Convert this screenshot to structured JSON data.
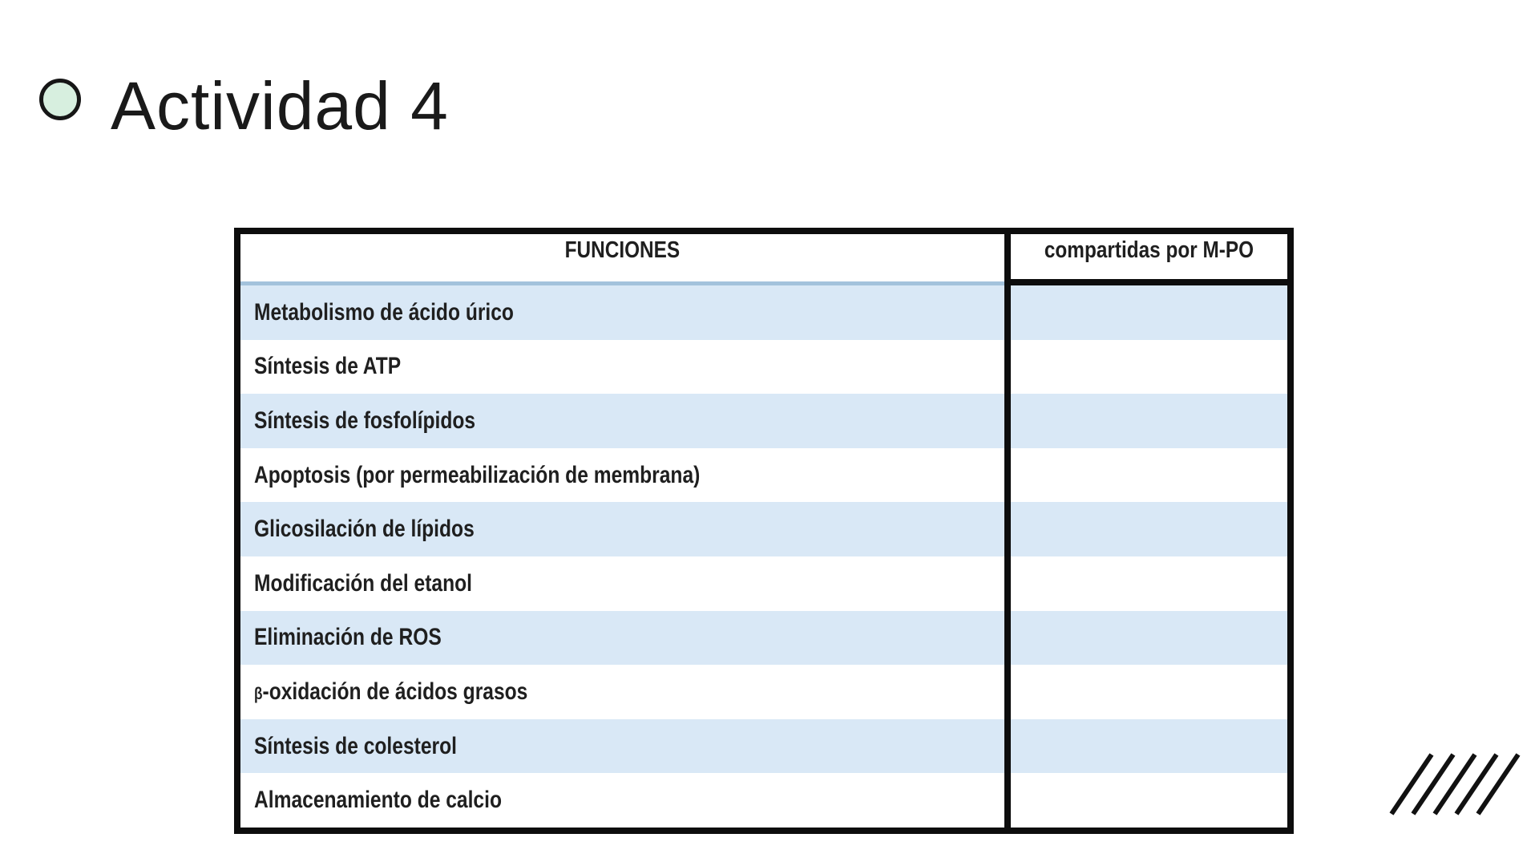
{
  "slide": {
    "title": "Actividad 4",
    "bullet_icon": "circle-icon"
  },
  "table": {
    "columns": [
      {
        "header": "FUNCIONES"
      },
      {
        "header": "compartidas por M-PO"
      }
    ],
    "rows": [
      {
        "funcion": "Metabolismo de ácido úrico",
        "compartida": "",
        "shaded": true
      },
      {
        "funcion": "Síntesis de ATP",
        "compartida": "",
        "shaded": false
      },
      {
        "funcion": "Síntesis de fosfolípidos",
        "compartida": "",
        "shaded": true
      },
      {
        "funcion": "Apoptosis (por permeabilización de membrana)",
        "compartida": "",
        "shaded": false
      },
      {
        "funcion": "Glicosilación de lípidos",
        "compartida": "",
        "shaded": true
      },
      {
        "funcion": "Modificación del etanol",
        "compartida": "",
        "shaded": false
      },
      {
        "funcion": "Eliminación de ROS",
        "compartida": "",
        "shaded": true
      },
      {
        "funcion": "β-oxidación de ácidos grasos",
        "compartida": "",
        "shaded": false
      },
      {
        "funcion": "Síntesis de colesterol",
        "compartida": "",
        "shaded": true
      },
      {
        "funcion": "Almacenamiento de calcio",
        "compartida": "",
        "shaded": false
      }
    ]
  },
  "decoration": {
    "slash_count": 5
  },
  "colors": {
    "row_band": "#d9e8f6",
    "header_underline": "#a3c2dc",
    "table_border": "#0d0d0d",
    "bullet_fill": "#d7efdf",
    "bullet_stroke": "#161616",
    "text": "#1f1f1f"
  }
}
